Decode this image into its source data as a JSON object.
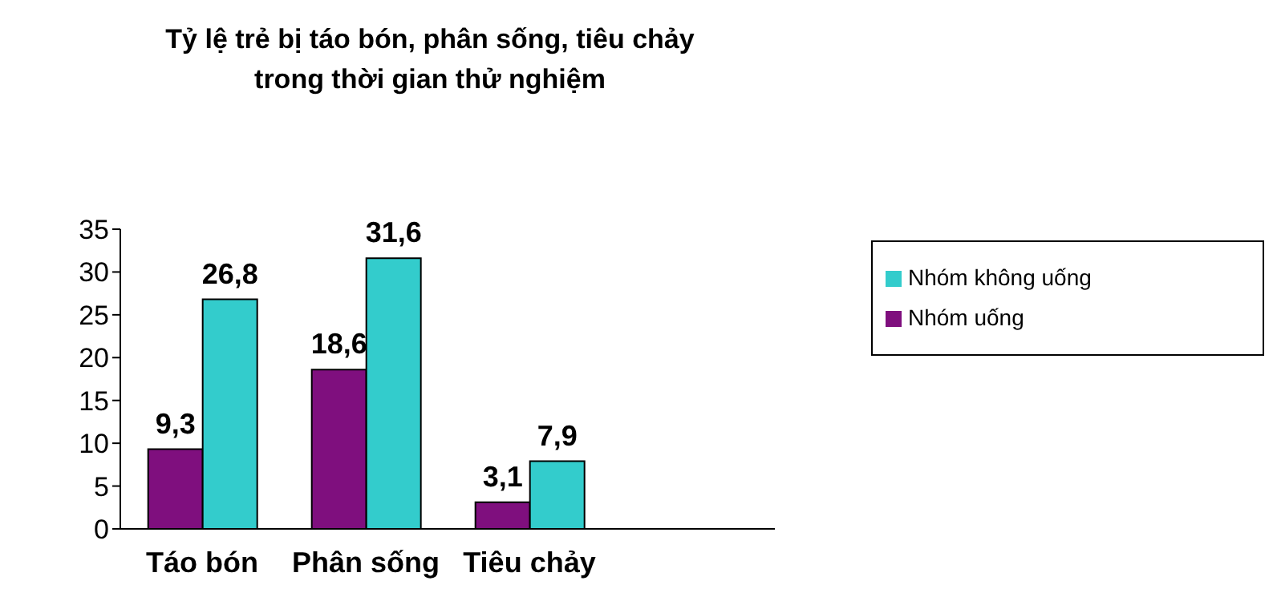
{
  "chart_data": {
    "type": "bar",
    "title": "Tỷ lệ trẻ bị táo bón, phân sống, tiêu chảy trong thời gian thử nghiệm",
    "categories": [
      "Táo bón",
      "Phân sống",
      "Tiêu chảy",
      null
    ],
    "series": [
      {
        "name": "Nhóm uống",
        "color": "#7f0f7e",
        "values": [
          9.3,
          18.6,
          3.1,
          null
        ]
      },
      {
        "name": "Nhóm không uống",
        "color": "#33cccc",
        "values": [
          26.8,
          31.6,
          7.9,
          null
        ]
      }
    ],
    "value_labels": [
      [
        "9,3",
        "18,6",
        "3,1",
        null
      ],
      [
        "26,8",
        "31,6",
        "7,9",
        null
      ]
    ],
    "ylim": [
      0,
      35
    ],
    "yticks": [
      0,
      5,
      10,
      15,
      20,
      25,
      30,
      35
    ],
    "grid": false,
    "legend": "top right"
  }
}
